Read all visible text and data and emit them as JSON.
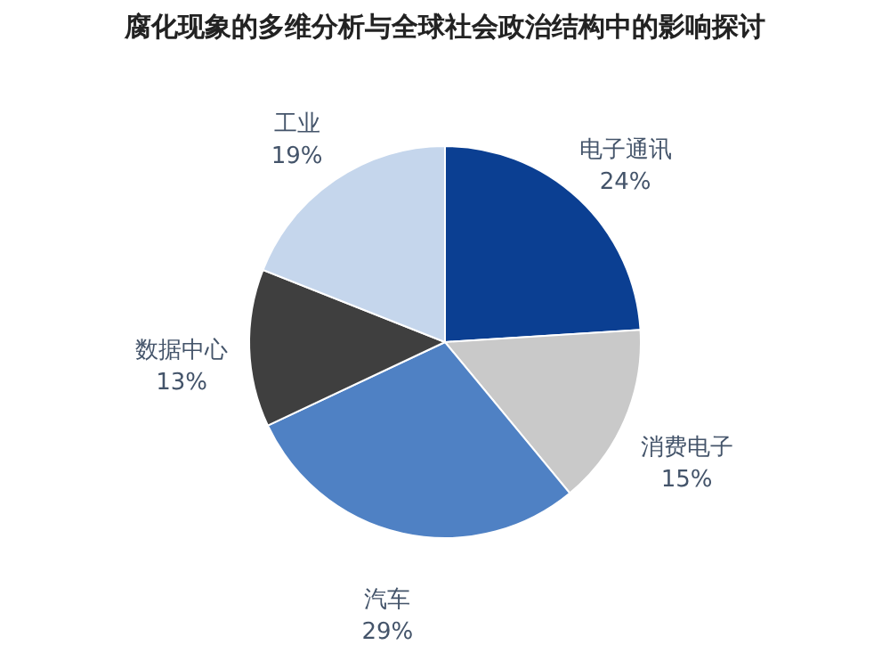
{
  "chart_data": {
    "type": "pie",
    "title": "腐化现象的多维分析与全球社会政治结构中的影响探讨",
    "categories": [
      "电子通讯",
      "消费电子",
      "汽车",
      "数据中心",
      "工业"
    ],
    "values": [
      24,
      15,
      29,
      13,
      19
    ],
    "value_labels": [
      "24%",
      "15%",
      "29%",
      "13%",
      "19%"
    ],
    "colors": [
      "#0b3f92",
      "#c9c9c9",
      "#4f81c4",
      "#3f3f3f",
      "#c5d6ec"
    ],
    "legend": false
  }
}
